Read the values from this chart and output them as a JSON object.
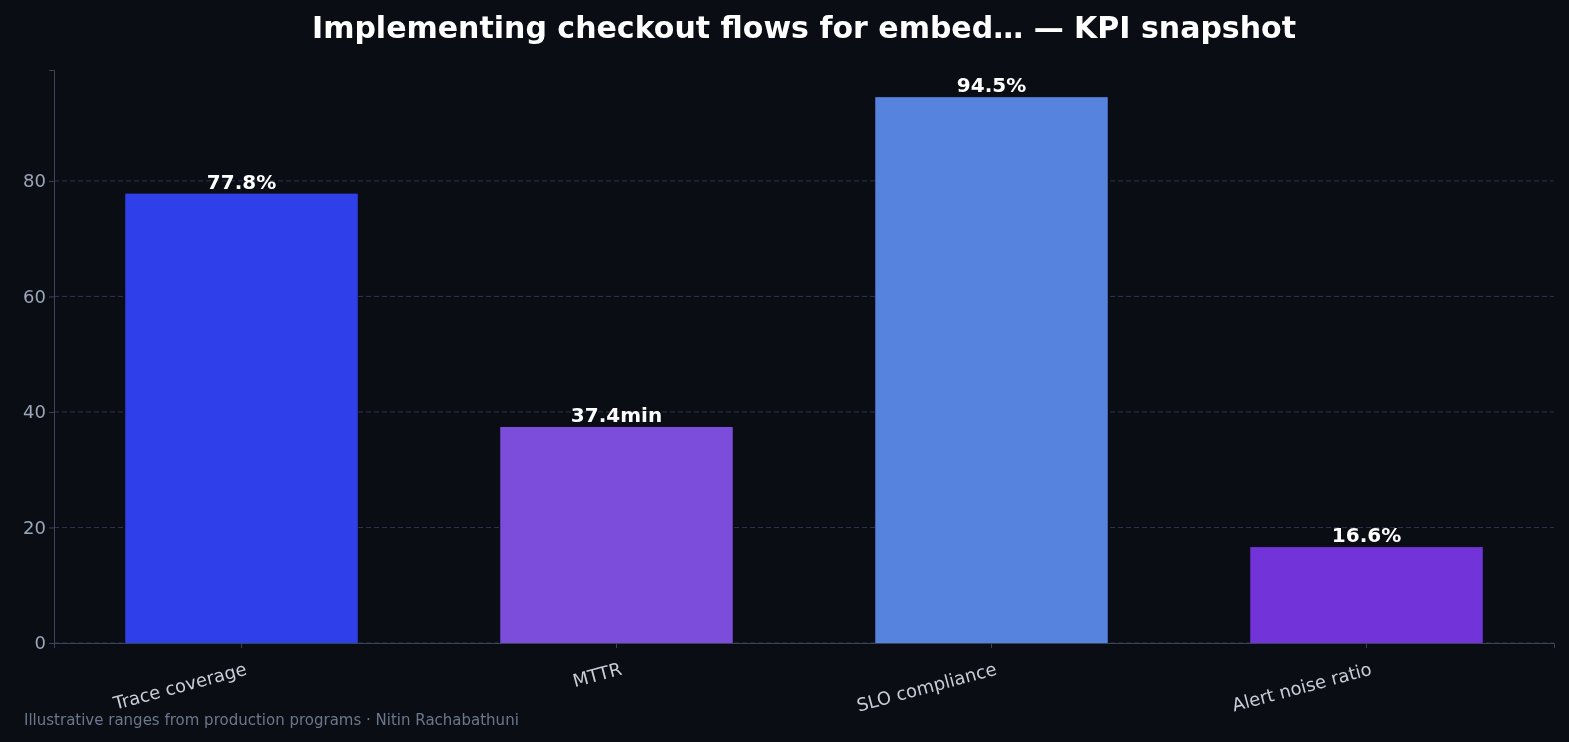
{
  "chart_data": {
    "type": "bar",
    "title": "Implementing checkout flows for embed… — KPI snapshot",
    "categories": [
      "Trace coverage",
      "MTTR",
      "SLO compliance",
      "Alert noise ratio"
    ],
    "values": [
      77.8,
      37.4,
      94.5,
      16.6
    ],
    "colors": [
      "#2f3fea",
      "#7c4ddb",
      "#5583de",
      "#7234d8"
    ],
    "value_labels": [
      "77.8%",
      "37.4min",
      "94.5%",
      "16.6%"
    ],
    "ylim": [
      0,
      99.2
    ],
    "yticks": [
      0,
      20,
      40,
      60,
      80
    ],
    "grid": "y",
    "annotations": [
      "Illustrative ranges from production programs · Nitin Rachabathuni"
    ]
  }
}
